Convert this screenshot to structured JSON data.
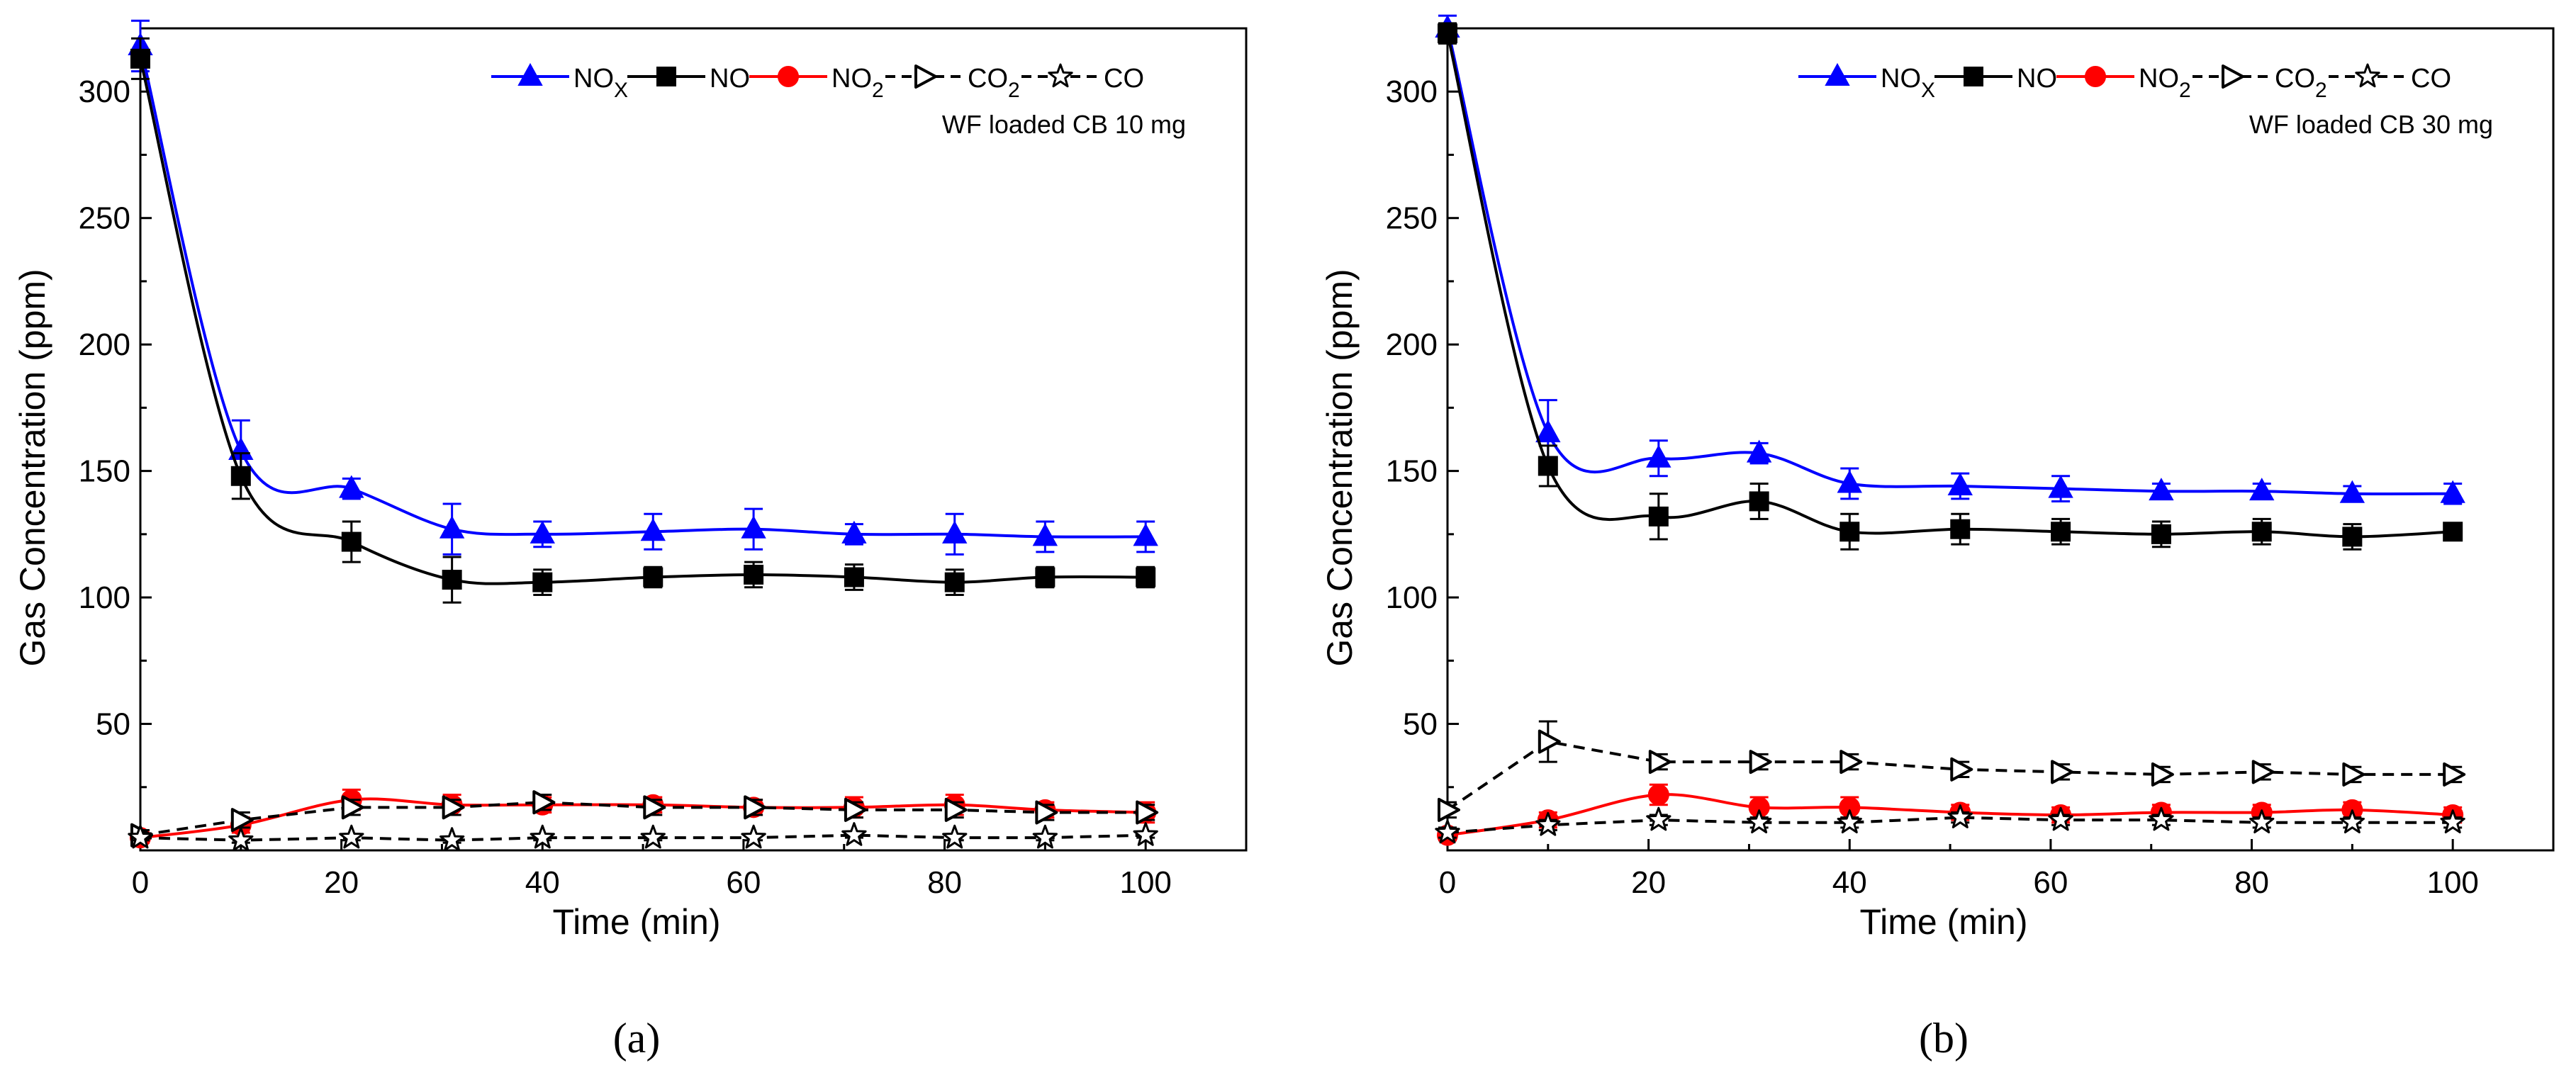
{
  "colors": {
    "nox": "#0000ff",
    "no": "#000000",
    "no2": "#ff0000",
    "co2": "#000000",
    "co": "#000000",
    "axis": "#000000",
    "background": "#ffffff"
  },
  "legend": {
    "nox": {
      "main": "NO",
      "sub": "X"
    },
    "no": {
      "main": "NO"
    },
    "no2": {
      "main": "NO",
      "sub": "2"
    },
    "co2": {
      "main": "CO",
      "sub": "2"
    },
    "co": {
      "main": "CO"
    }
  },
  "chart_data": [
    {
      "type": "line",
      "panel_label": "(a)",
      "annotation": "WF loaded CB 10 mg",
      "xlabel": "Time (min)",
      "ylabel": "Gas Concentration (ppm)",
      "xlim": [
        0,
        110
      ],
      "ylim": [
        0,
        325
      ],
      "xticks": [
        0,
        20,
        40,
        60,
        80,
        100
      ],
      "yticks": [
        50,
        100,
        150,
        200,
        250,
        300
      ],
      "legend_position": "top-right",
      "series": [
        {
          "key": "nox",
          "name": "NOx",
          "marker": "triangle-up",
          "filled": true,
          "dashed": false,
          "x": [
            0,
            10,
            21,
            31,
            40,
            51,
            61,
            71,
            81,
            90,
            100
          ],
          "y": [
            318,
            158,
            143,
            127,
            125,
            126,
            127,
            125,
            125,
            124,
            124
          ],
          "err": [
            10,
            12,
            4,
            10,
            5,
            7,
            8,
            4,
            8,
            6,
            6
          ]
        },
        {
          "key": "no",
          "name": "NO",
          "marker": "square",
          "filled": true,
          "dashed": false,
          "x": [
            0,
            10,
            21,
            31,
            40,
            51,
            61,
            71,
            81,
            90,
            100
          ],
          "y": [
            313,
            148,
            122,
            107,
            106,
            108,
            109,
            108,
            106,
            108,
            108
          ],
          "err": [
            8,
            9,
            8,
            9,
            5,
            4,
            5,
            5,
            5,
            4,
            4
          ]
        },
        {
          "key": "no2",
          "name": "NO2",
          "marker": "circle",
          "filled": true,
          "dashed": false,
          "x": [
            0,
            10,
            21,
            31,
            40,
            51,
            61,
            71,
            81,
            90,
            100
          ],
          "y": [
            5,
            10,
            20,
            18,
            18,
            18,
            17,
            17,
            18,
            16,
            15
          ],
          "err": [
            2,
            3,
            4,
            4,
            3,
            3,
            3,
            4,
            4,
            3,
            4
          ]
        },
        {
          "key": "co2",
          "name": "CO2",
          "marker": "triangle-right",
          "filled": false,
          "dashed": true,
          "x": [
            0,
            10,
            21,
            31,
            40,
            51,
            61,
            71,
            81,
            90,
            100
          ],
          "y": [
            6,
            12,
            17,
            17,
            19,
            17,
            17,
            16,
            16,
            15,
            15
          ],
          "err": [
            2,
            3,
            3,
            3,
            3,
            3,
            3,
            3,
            3,
            3,
            3
          ]
        },
        {
          "key": "co",
          "name": "CO",
          "marker": "star",
          "filled": false,
          "dashed": true,
          "x": [
            0,
            10,
            21,
            31,
            40,
            51,
            61,
            71,
            81,
            90,
            100
          ],
          "y": [
            5,
            4,
            5,
            4,
            5,
            5,
            5,
            6,
            5,
            5,
            6
          ],
          "err": [
            1,
            1,
            1,
            1,
            1,
            1,
            1,
            1,
            1,
            1,
            1
          ]
        }
      ]
    },
    {
      "type": "line",
      "panel_label": "(b)",
      "annotation": "WF loaded CB 30 mg",
      "xlabel": "Time (min)",
      "ylabel": "Gas Concentration (ppm)",
      "xlim": [
        0,
        110
      ],
      "ylim": [
        0,
        325
      ],
      "xticks": [
        0,
        20,
        40,
        60,
        80,
        100
      ],
      "yticks": [
        50,
        100,
        150,
        200,
        250,
        300
      ],
      "legend_position": "top-right",
      "series": [
        {
          "key": "nox",
          "name": "NOx",
          "marker": "triangle-up",
          "filled": true,
          "dashed": false,
          "x": [
            0,
            10,
            21,
            31,
            40,
            51,
            61,
            71,
            81,
            90,
            100
          ],
          "y": [
            325,
            165,
            155,
            157,
            145,
            144,
            143,
            142,
            142,
            141,
            141
          ],
          "err": [
            5,
            13,
            7,
            4,
            6,
            5,
            5,
            3,
            3,
            3,
            4
          ]
        },
        {
          "key": "no",
          "name": "NO",
          "marker": "square",
          "filled": true,
          "dashed": false,
          "x": [
            0,
            10,
            21,
            31,
            40,
            51,
            61,
            71,
            81,
            90,
            100
          ],
          "y": [
            323,
            152,
            132,
            138,
            126,
            127,
            126,
            125,
            126,
            124,
            126
          ],
          "err": [
            4,
            8,
            9,
            7,
            7,
            6,
            5,
            5,
            5,
            5,
            3
          ]
        },
        {
          "key": "no2",
          "name": "NO2",
          "marker": "circle",
          "filled": true,
          "dashed": false,
          "x": [
            0,
            10,
            21,
            31,
            40,
            51,
            61,
            71,
            81,
            90,
            100
          ],
          "y": [
            6,
            12,
            22,
            17,
            17,
            15,
            14,
            15,
            15,
            16,
            14
          ],
          "err": [
            2,
            3,
            4,
            4,
            4,
            3,
            3,
            3,
            3,
            3,
            3
          ]
        },
        {
          "key": "co2",
          "name": "CO2",
          "marker": "triangle-right",
          "filled": false,
          "dashed": true,
          "x": [
            0,
            10,
            21,
            31,
            40,
            51,
            61,
            71,
            81,
            90,
            100
          ],
          "y": [
            16,
            43,
            35,
            35,
            35,
            32,
            31,
            30,
            31,
            30,
            30
          ],
          "err": [
            3,
            8,
            3,
            3,
            3,
            3,
            3,
            3,
            3,
            3,
            3
          ]
        },
        {
          "key": "co",
          "name": "CO",
          "marker": "star",
          "filled": false,
          "dashed": true,
          "x": [
            0,
            10,
            21,
            31,
            40,
            51,
            61,
            71,
            81,
            90,
            100
          ],
          "y": [
            7,
            10,
            12,
            11,
            11,
            13,
            12,
            12,
            11,
            11,
            11
          ],
          "err": [
            2,
            2,
            2,
            2,
            2,
            2,
            2,
            2,
            2,
            2,
            2
          ]
        }
      ]
    }
  ]
}
